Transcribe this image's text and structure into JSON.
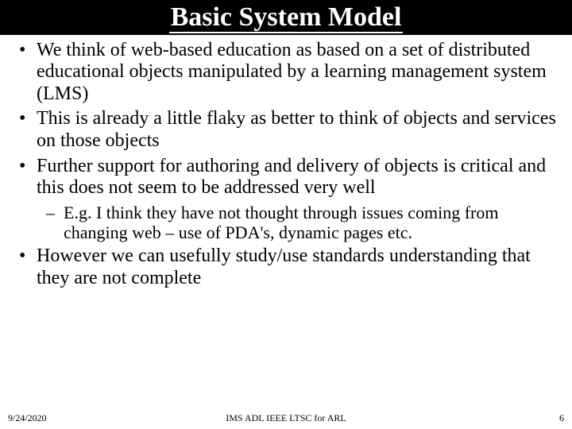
{
  "title": "Basic System Model",
  "bullets": [
    {
      "text": "We think of web-based education as based on a set of distributed educational objects manipulated by a learning management system (LMS)"
    },
    {
      "text": "This is already a little flaky as better to think of objects and services on those objects"
    },
    {
      "text": "Further support for authoring and delivery of objects is critical and this does not seem to be addressed very well",
      "sub": [
        "E.g. I think they have not thought through issues coming from changing web – use of PDA's, dynamic pages etc."
      ]
    },
    {
      "text": "However we can usefully study/use standards understanding that they are not complete"
    }
  ],
  "footer": {
    "date": "9/24/2020",
    "center": "IMS ADL IEEE LTSC for ARL",
    "page": "6"
  },
  "colors": {
    "title_bg": "#000000",
    "title_fg": "#ffffff",
    "body_bg": "#ffffff",
    "body_fg": "#000000"
  },
  "typography": {
    "title_fontsize": 34,
    "bullet_fontsize": 24,
    "subbullet_fontsize": 22,
    "footer_fontsize": 12,
    "font_family": "Times New Roman"
  }
}
